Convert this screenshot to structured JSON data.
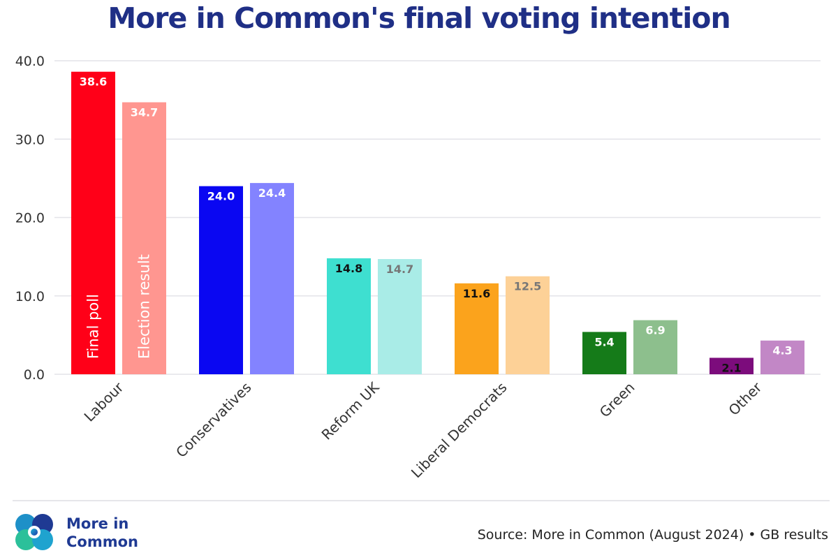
{
  "chart_data": {
    "type": "bar",
    "title": "More in Common's final voting intention",
    "categories": [
      "Labour",
      "Conservatives",
      "Reform UK",
      "Liberal Democrats",
      "Green",
      "Other"
    ],
    "series": [
      {
        "name": "Final poll",
        "values": [
          38.6,
          24.0,
          14.8,
          11.6,
          5.4,
          2.1
        ],
        "labels": [
          "38.6",
          "24.0",
          "14.8",
          "11.6",
          "5.4",
          "2.1"
        ],
        "colors": [
          "#ff0018",
          "#0a07f2",
          "#3edfd0",
          "#fba31c",
          "#157b19",
          "#7c0c7c"
        ],
        "label_colors": [
          "#ffffff",
          "#ffffff",
          "#111111",
          "#111111",
          "#ffffff",
          "#111111"
        ]
      },
      {
        "name": "Election result",
        "values": [
          34.7,
          24.4,
          14.7,
          12.5,
          6.9,
          4.3
        ],
        "labels": [
          "34.7",
          "24.4",
          "14.7",
          "12.5",
          "6.9",
          "4.3"
        ],
        "colors": [
          "#ff9690",
          "#8383ff",
          "#a9ece7",
          "#fdd197",
          "#8dbf8d",
          "#c287c6"
        ],
        "label_colors": [
          "#ffffff",
          "#ffffff",
          "#777777",
          "#777777",
          "#ffffff",
          "#ffffff"
        ]
      }
    ],
    "y_ticks": [
      "40.0",
      "30.0",
      "20.0",
      "10.0",
      "0.0"
    ],
    "y_tick_values": [
      40,
      30,
      20,
      10,
      0
    ],
    "ylim": [
      0,
      40
    ],
    "grid": true,
    "legend": "inside-bars"
  },
  "footer": {
    "brand_line1": "More in",
    "brand_line2": "Common",
    "source": "Source: More in Common (August 2024) • GB results"
  }
}
